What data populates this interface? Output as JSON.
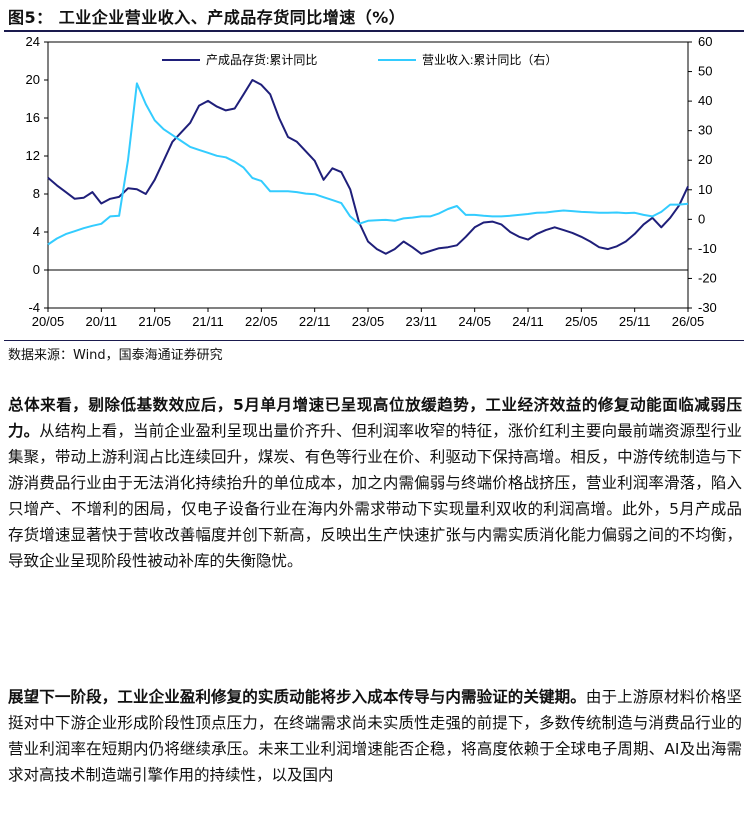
{
  "figure": {
    "title": "图5：  工业企业营业收入、产成品存货同比增速（%）",
    "source": "数据来源：Wind，国泰海通证券研究"
  },
  "colors": {
    "inventory": "#1f1f7a",
    "revenue": "#33ccff",
    "axis": "#000000"
  },
  "chart_data": {
    "type": "line",
    "legend_position": "top-center",
    "grid": false,
    "x_tick_labels": [
      "20/05",
      "20/11",
      "21/05",
      "21/11",
      "22/05",
      "22/11",
      "23/05",
      "23/11",
      "24/05",
      "24/11",
      "25/05",
      "25/11",
      "26/05"
    ],
    "y_left": {
      "range": [
        -4,
        24
      ],
      "ticks": [
        -4,
        0,
        4,
        8,
        12,
        16,
        20,
        24
      ]
    },
    "y_right": {
      "range": [
        -30,
        60
      ],
      "ticks": [
        -30,
        -20,
        -10,
        0,
        10,
        20,
        30,
        40,
        50,
        60
      ]
    },
    "series": [
      {
        "name": "产成品存货:累计同比",
        "axis": "left",
        "color": "#1f1f7a",
        "x": [
          "20/05",
          "20/06",
          "20/07",
          "20/08",
          "20/09",
          "20/10",
          "20/11",
          "20/12",
          "21/01",
          "21/02",
          "21/03",
          "21/04",
          "21/05",
          "21/06",
          "21/07",
          "21/08",
          "21/09",
          "21/10",
          "21/11",
          "21/12",
          "22/01",
          "22/02",
          "22/03",
          "22/04",
          "22/05",
          "22/06",
          "22/07",
          "22/08",
          "22/09",
          "22/10",
          "22/11",
          "22/12",
          "23/01",
          "23/02",
          "23/03",
          "23/04",
          "23/05",
          "23/06",
          "23/07",
          "23/08",
          "23/09",
          "23/10",
          "23/11",
          "23/12",
          "24/01",
          "24/02",
          "24/03",
          "24/04",
          "24/05",
          "24/06",
          "24/07",
          "24/08",
          "24/09",
          "24/10",
          "24/11",
          "24/12",
          "25/01",
          "25/02",
          "25/03",
          "25/04",
          "25/05",
          "25/06",
          "25/07",
          "25/08",
          "25/09",
          "25/10",
          "25/11",
          "25/12",
          "26/01",
          "26/02",
          "26/03",
          "26/04",
          "26/05"
        ],
        "values": [
          9.7,
          8.9,
          8.2,
          7.5,
          7.6,
          8.2,
          7.0,
          7.5,
          7.7,
          8.6,
          8.5,
          8.0,
          9.5,
          11.5,
          13.5,
          14.5,
          15.5,
          17.3,
          17.8,
          17.2,
          16.8,
          17.0,
          18.5,
          20.0,
          19.5,
          18.5,
          16.0,
          14.0,
          13.5,
          12.5,
          11.5,
          9.5,
          10.7,
          10.3,
          8.5,
          5.0,
          3.0,
          2.2,
          1.7,
          2.2,
          3.0,
          2.4,
          1.7,
          2.0,
          2.3,
          2.4,
          2.6,
          3.5,
          4.5,
          5.0,
          5.1,
          4.8,
          4.0,
          3.5,
          3.2,
          3.8,
          4.2,
          4.5,
          4.2,
          3.9,
          3.5,
          3.0,
          2.4,
          2.2,
          2.5,
          3.0,
          3.8,
          4.8,
          5.5,
          4.5,
          5.5,
          6.8,
          8.8
        ]
      },
      {
        "name": "营业收入:累计同比（右）",
        "axis": "right",
        "color": "#33ccff",
        "x": [
          "20/05",
          "20/06",
          "20/07",
          "20/08",
          "20/09",
          "20/10",
          "20/11",
          "20/12",
          "21/01",
          "21/02",
          "21/03",
          "21/04",
          "21/05",
          "21/06",
          "21/07",
          "21/08",
          "21/09",
          "21/10",
          "21/11",
          "21/12",
          "22/01",
          "22/02",
          "22/03",
          "22/04",
          "22/05",
          "22/06",
          "22/07",
          "22/08",
          "22/09",
          "22/10",
          "22/11",
          "22/12",
          "23/01",
          "23/02",
          "23/03",
          "23/04",
          "23/05",
          "23/06",
          "23/07",
          "23/08",
          "23/09",
          "23/10",
          "23/11",
          "23/12",
          "24/01",
          "24/02",
          "24/03",
          "24/04",
          "24/05",
          "24/06",
          "24/07",
          "24/08",
          "24/09",
          "24/10",
          "24/11",
          "24/12",
          "25/01",
          "25/02",
          "25/03",
          "25/04",
          "25/05",
          "25/06",
          "25/07",
          "25/08",
          "25/09",
          "25/10",
          "25/11",
          "25/12",
          "26/01",
          "26/02",
          "26/03",
          "26/04",
          "26/05"
        ],
        "values": [
          -8.5,
          -6.5,
          -5.0,
          -4.0,
          -3.0,
          -2.2,
          -1.5,
          1.0,
          1.2,
          20.0,
          46.0,
          39.0,
          33.5,
          30.5,
          28.5,
          26.5,
          24.5,
          23.5,
          22.5,
          21.5,
          21.0,
          19.5,
          17.5,
          14.0,
          13.0,
          9.5,
          9.5,
          9.5,
          9.2,
          8.7,
          8.5,
          7.5,
          6.5,
          5.5,
          1.0,
          -1.5,
          -0.5,
          -0.3,
          -0.2,
          -0.5,
          0.3,
          0.6,
          1.0,
          1.0,
          2.0,
          3.5,
          4.5,
          1.5,
          1.5,
          1.2,
          1.0,
          1.0,
          1.2,
          1.5,
          1.8,
          2.2,
          2.3,
          2.7,
          3.0,
          2.8,
          2.5,
          2.4,
          2.2,
          2.2,
          2.3,
          2.1,
          2.2,
          1.5,
          1.0,
          2.5,
          5.0,
          5.0,
          5.3
        ]
      }
    ]
  },
  "body": {
    "p1_bold": "总体来看，剔除低基数效应后，5月单月增速已呈现高位放缓趋势，工业经济效益的修复动能面临减弱压力。",
    "p1_text": "从结构上看，当前企业盈利呈现出量价齐升、但利润率收窄的特征，涨价红利主要向最前端资源型行业集聚，带动上游利润占比连续回升，煤炭、有色等行业在价、利驱动下保持高增。相反，中游传统制造与下游消费品行业由于无法消化持续抬升的单位成本，加之内需偏弱与终端价格战挤压，营业利润率滑落，陷入只增产、不增利的困局，仅电子设备行业在海内外需求带动下实现量利双收的利润高增。此外，5月产成品存货增速显著快于营收改善幅度并创下新高，反映出生产快速扩张与内需实质消化能力偏弱之间的不均衡，导致企业呈现阶段性被动补库的失衡隐忧。",
    "p2_bold": "展望下一阶段，工业企业盈利修复的实质动能将步入成本传导与内需验证的关键期。",
    "p2_text": "由于上游原材料价格坚挺对中下游企业形成阶段性顶点压力，在终端需求尚未实质性走强的前提下，多数传统制造与消费品行业的营业利润率在短期内仍将继续承压。未来工业利润增速能否企稳，将高度依赖于全球电子周期、AI及出海需求对高技术制造端引擎作用的持续性，以及国内"
  }
}
